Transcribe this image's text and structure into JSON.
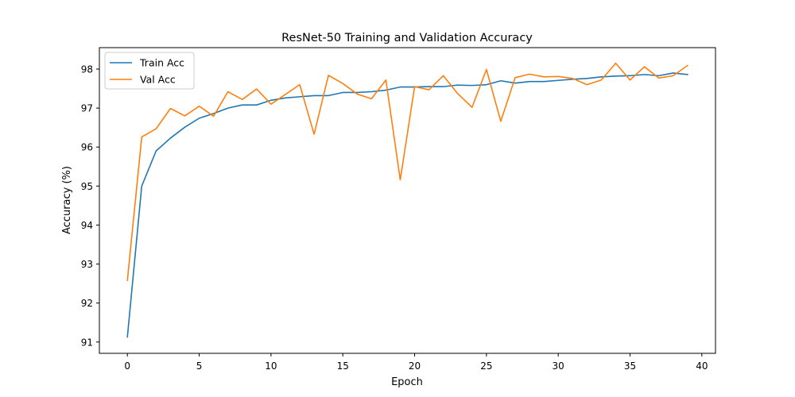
{
  "chart_data": {
    "type": "line",
    "title": "ResNet-50 Training and Validation Accuracy",
    "xlabel": "Epoch",
    "ylabel": "Accuracy (%)",
    "xlim": [
      -1.95,
      40.95
    ],
    "ylim": [
      90.71,
      98.55
    ],
    "xticks": [
      0,
      5,
      10,
      15,
      20,
      25,
      30,
      35,
      40
    ],
    "yticks": [
      91,
      92,
      93,
      94,
      95,
      96,
      97,
      98
    ],
    "grid": false,
    "legend_position": "top-left",
    "x": [
      0,
      1,
      2,
      3,
      4,
      5,
      6,
      7,
      8,
      9,
      10,
      11,
      12,
      13,
      14,
      15,
      16,
      17,
      18,
      19,
      20,
      21,
      22,
      23,
      24,
      25,
      26,
      27,
      28,
      29,
      30,
      31,
      32,
      33,
      34,
      35,
      36,
      37,
      38,
      39
    ],
    "series": [
      {
        "name": "Train Acc",
        "color": "#1f77b4",
        "values": [
          91.13,
          95.0,
          95.9,
          96.23,
          96.51,
          96.74,
          96.86,
          97.0,
          97.08,
          97.08,
          97.2,
          97.26,
          97.29,
          97.32,
          97.32,
          97.4,
          97.4,
          97.42,
          97.46,
          97.54,
          97.54,
          97.55,
          97.55,
          97.59,
          97.58,
          97.6,
          97.7,
          97.64,
          97.68,
          97.68,
          97.71,
          97.74,
          97.76,
          97.8,
          97.82,
          97.83,
          97.86,
          97.83,
          97.9,
          97.86
        ]
      },
      {
        "name": "Val Acc",
        "color": "#ff7f0e",
        "values": [
          92.58,
          96.26,
          96.47,
          96.99,
          96.8,
          97.05,
          96.79,
          97.42,
          97.22,
          97.49,
          97.1,
          97.35,
          97.6,
          96.33,
          97.84,
          97.63,
          97.36,
          97.24,
          97.72,
          95.16,
          97.55,
          97.47,
          97.83,
          97.37,
          97.02,
          97.99,
          96.66,
          97.78,
          97.87,
          97.8,
          97.81,
          97.76,
          97.6,
          97.72,
          98.15,
          97.72,
          98.06,
          97.77,
          97.83,
          98.09
        ]
      }
    ]
  }
}
